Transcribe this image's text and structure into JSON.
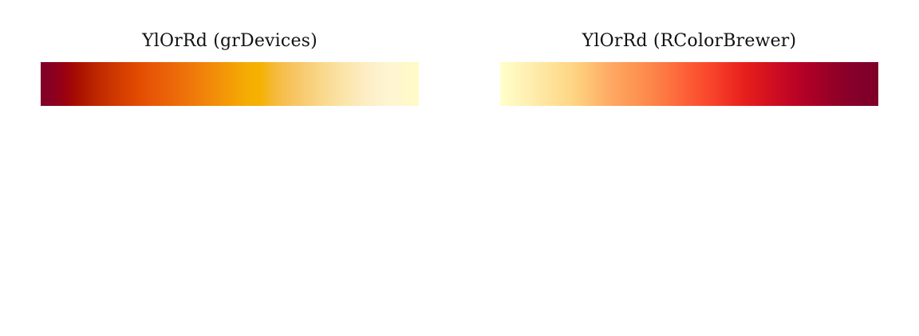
{
  "panels": [
    {
      "title": "YlOrRd (grDevices)",
      "colors": [
        "#7f0028",
        "#8a0021",
        "#9a0010",
        "#a80e00",
        "#b51f00",
        "#c22c00",
        "#cd3700",
        "#d84100",
        "#e24b00",
        "#e75506",
        "#ea5f07",
        "#ec6909",
        "#ee740a",
        "#f07f0a",
        "#f28a09",
        "#f39607",
        "#f4a205",
        "#f5ae02",
        "#f5b102",
        "#f5b833",
        "#f6c050",
        "#f7c766",
        "#f8cf79",
        "#f9d78a",
        "#fade9b",
        "#fbe5ab",
        "#fceabb",
        "#fdefc8",
        "#fdf3cf",
        "#fef6d2",
        "#fff8c9",
        "#fffbc8"
      ]
    },
    {
      "title": "YlOrRd (RColorBrewer)",
      "colors": [
        "#ffffcc",
        "#fff7be",
        "#ffefb1",
        "#fee7a3",
        "#fedf95",
        "#fed787",
        "#fec979",
        "#feb86d",
        "#fea762",
        "#fd9c57",
        "#fd914f",
        "#fd8348",
        "#fd7440",
        "#fc6439",
        "#fc5432",
        "#f9452c",
        "#f23525",
        "#ea251e",
        "#e11a1c",
        "#d5121f",
        "#c90a22",
        "#bd0426",
        "#af0026",
        "#a00026",
        "#920026",
        "#87002a",
        "#80002a",
        "#800026"
      ]
    }
  ]
}
